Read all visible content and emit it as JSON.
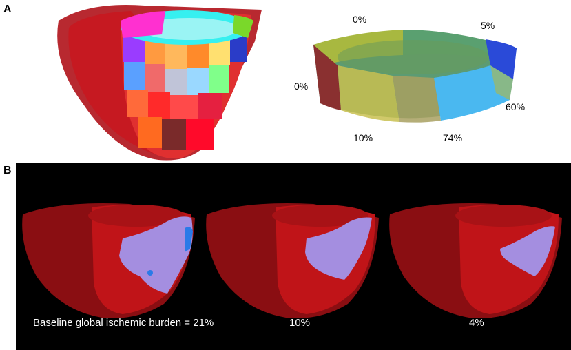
{
  "panel_a": {
    "label": "A",
    "segment_percentages": [
      "0%",
      "5%",
      "0%",
      "60%",
      "10%",
      "74%"
    ]
  },
  "panel_b": {
    "label": "B",
    "captions": [
      "Baseline global ischemic burden = 21%",
      "10%",
      "4%"
    ],
    "ischemic_burden_percent": [
      21,
      10,
      4
    ]
  },
  "colors": {
    "myocardium": "#cc1414",
    "ischemia": "#a48ee0",
    "panel_b_background": "#000000"
  }
}
